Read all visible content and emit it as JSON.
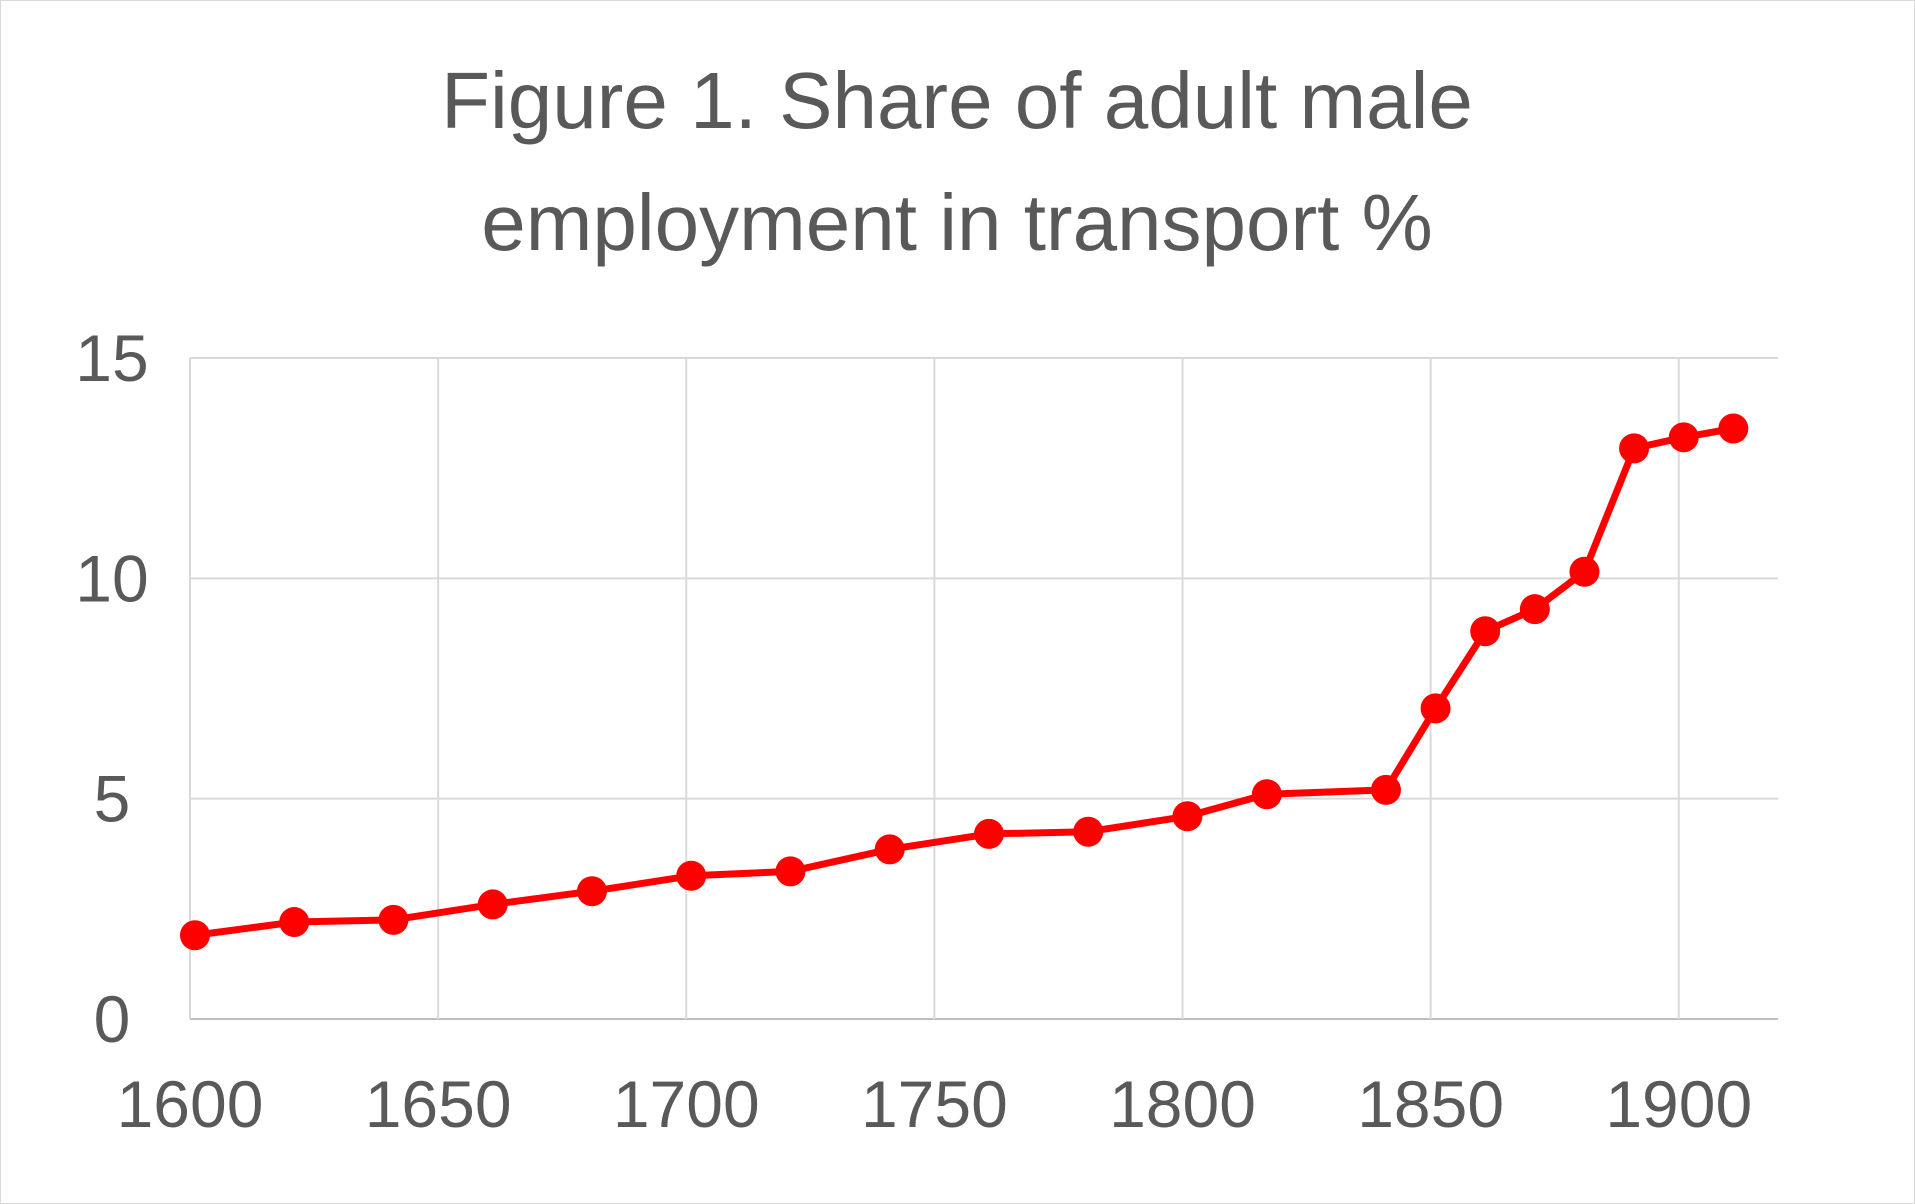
{
  "chart_data": {
    "type": "line",
    "title": "Figure 1. Share of adult male employment in transport %",
    "title_lines": [
      "Figure 1. Share of adult male",
      "employment in transport %"
    ],
    "xlabel": "",
    "ylabel": "",
    "xlim": [
      1600,
      1920
    ],
    "ylim": [
      0,
      15
    ],
    "x_ticks": [
      1600,
      1650,
      1700,
      1750,
      1800,
      1850,
      1900
    ],
    "y_ticks": [
      0,
      5,
      10,
      15
    ],
    "grid": true,
    "legend": "none",
    "series": [
      {
        "color": "#ff0000",
        "points": [
          {
            "x": 1601,
            "y": 1.9
          },
          {
            "x": 1621,
            "y": 2.2
          },
          {
            "x": 1641,
            "y": 2.25
          },
          {
            "x": 1661,
            "y": 2.6
          },
          {
            "x": 1681,
            "y": 2.9
          },
          {
            "x": 1701,
            "y": 3.25
          },
          {
            "x": 1721,
            "y": 3.35
          },
          {
            "x": 1741,
            "y": 3.85
          },
          {
            "x": 1761,
            "y": 4.2
          },
          {
            "x": 1781,
            "y": 4.25
          },
          {
            "x": 1801,
            "y": 4.6
          },
          {
            "x": 1817,
            "y": 5.1
          },
          {
            "x": 1841,
            "y": 5.2
          },
          {
            "x": 1851,
            "y": 7.05
          },
          {
            "x": 1861,
            "y": 8.8
          },
          {
            "x": 1871,
            "y": 9.3
          },
          {
            "x": 1881,
            "y": 10.15
          },
          {
            "x": 1891,
            "y": 12.95
          },
          {
            "x": 1901,
            "y": 13.2
          },
          {
            "x": 1911,
            "y": 13.4
          }
        ]
      }
    ]
  }
}
